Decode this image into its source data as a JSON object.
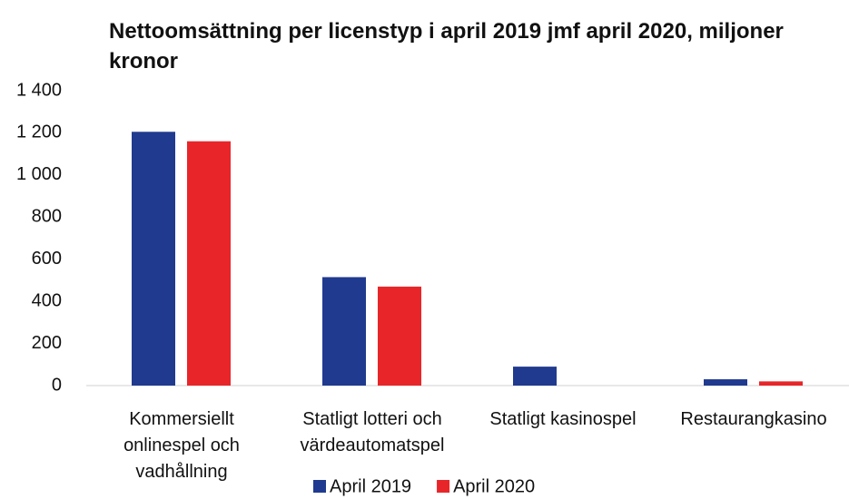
{
  "chart_data": {
    "type": "bar",
    "title": "Nettoomsättning per licenstyp i april 2019 jmf april 2020, miljoner kronor",
    "categories": [
      "Kommersiellt onlinespel och vadhållning",
      "Statligt lotteri och värdeautomatspel",
      "Statligt kasinospel",
      "Restaurangkasino"
    ],
    "series": [
      {
        "name": "April 2019",
        "color": "#203a8f",
        "values": [
          1205,
          515,
          90,
          30
        ]
      },
      {
        "name": "April 2020",
        "color": "#e8262a",
        "values": [
          1160,
          470,
          0,
          20
        ]
      }
    ],
    "ylim": [
      0,
      1400
    ],
    "yticks": [
      0,
      200,
      400,
      600,
      800,
      {
        "value": 1000,
        "label": "1 000"
      },
      {
        "value": 1200,
        "label": "1 200"
      },
      {
        "value": 1400,
        "label": "1 400"
      }
    ],
    "grid": false
  }
}
